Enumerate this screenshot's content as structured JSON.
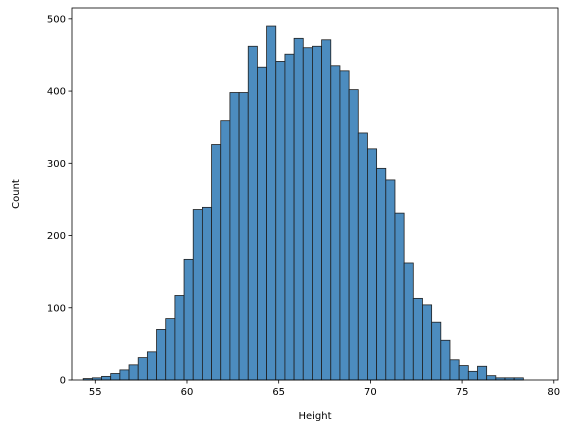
{
  "chart_data": {
    "type": "bar",
    "title": "",
    "xlabel": "Height",
    "ylabel": "Count",
    "xlim": [
      53.73,
      80.23
    ],
    "ylim": [
      0,
      515
    ],
    "xticks": [
      55,
      60,
      65,
      70,
      75,
      80
    ],
    "yticks": [
      0,
      100,
      200,
      300,
      400,
      500
    ],
    "grid": false,
    "legend": "none",
    "bar_color": "#4c8cbf",
    "bar_edge_color": "#1f1f1f",
    "bin_start": 54.34,
    "bin_width": 0.5,
    "values": [
      2,
      3,
      5,
      9,
      14,
      21,
      31,
      39,
      70,
      85,
      117,
      167,
      236,
      239,
      326,
      359,
      398,
      398,
      462,
      433,
      490,
      441,
      451,
      473,
      460,
      462,
      471,
      435,
      428,
      402,
      342,
      320,
      293,
      277,
      231,
      162,
      113,
      104,
      80,
      55,
      28,
      20,
      12,
      19,
      6,
      3,
      3,
      3
    ]
  }
}
